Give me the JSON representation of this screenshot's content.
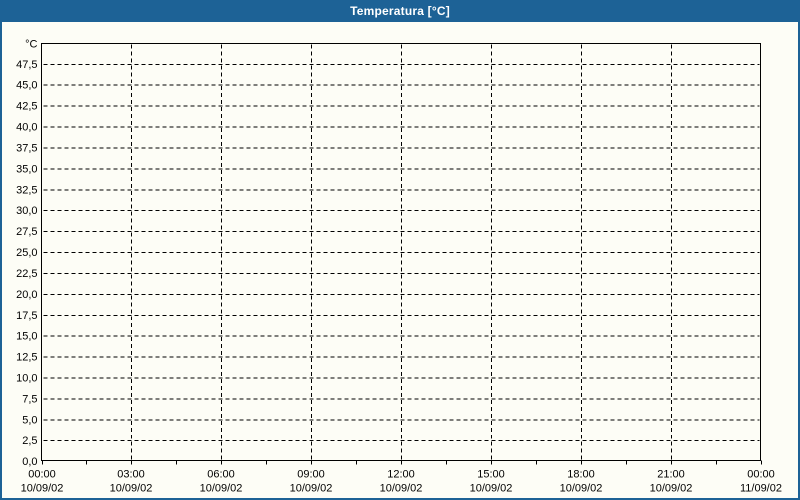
{
  "window": {
    "title": "Temperatura [°C]",
    "titlebar_color": "#1d6296",
    "border_color": "#1d6296",
    "background_color": "#fdfdf6"
  },
  "chart_data": {
    "type": "line",
    "title": "Temperatura [°C]",
    "unit_label": "°C",
    "ylabel": "°C",
    "xlabel": "",
    "ylim": [
      0,
      50
    ],
    "y_tick_step": 2.5,
    "y_ticks": [
      {
        "value": 0,
        "label": "0,0"
      },
      {
        "value": 2.5,
        "label": "2,5"
      },
      {
        "value": 5,
        "label": "5,0"
      },
      {
        "value": 7.5,
        "label": "7,5"
      },
      {
        "value": 10,
        "label": "10,0"
      },
      {
        "value": 12.5,
        "label": "12,5"
      },
      {
        "value": 15,
        "label": "15,0"
      },
      {
        "value": 17.5,
        "label": "17,5"
      },
      {
        "value": 20,
        "label": "20,0"
      },
      {
        "value": 22.5,
        "label": "22,5"
      },
      {
        "value": 25,
        "label": "25,0"
      },
      {
        "value": 27.5,
        "label": "27,5"
      },
      {
        "value": 30,
        "label": "30,0"
      },
      {
        "value": 32.5,
        "label": "32,5"
      },
      {
        "value": 35,
        "label": "35,0"
      },
      {
        "value": 37.5,
        "label": "37,5"
      },
      {
        "value": 40,
        "label": "40,0"
      },
      {
        "value": 42.5,
        "label": "42,5"
      },
      {
        "value": 45,
        "label": "45,0"
      },
      {
        "value": 47.5,
        "label": "47,5"
      }
    ],
    "x_ticks": [
      {
        "time": "00:00",
        "date": "10/09/02"
      },
      {
        "time": "03:00",
        "date": "10/09/02"
      },
      {
        "time": "06:00",
        "date": "10/09/02"
      },
      {
        "time": "09:00",
        "date": "10/09/02"
      },
      {
        "time": "12:00",
        "date": "10/09/02"
      },
      {
        "time": "15:00",
        "date": "10/09/02"
      },
      {
        "time": "18:00",
        "date": "10/09/02"
      },
      {
        "time": "21:00",
        "date": "10/09/02"
      },
      {
        "time": "00:00",
        "date": "11/09/02"
      }
    ],
    "x_minor_ticks_per_interval": 1,
    "grid": {
      "horizontal": true,
      "vertical": true,
      "style": "dashed",
      "color": "#000000"
    },
    "axis_color": "#000000",
    "plot_background": "#fdfdf6",
    "legend": null,
    "series": []
  }
}
